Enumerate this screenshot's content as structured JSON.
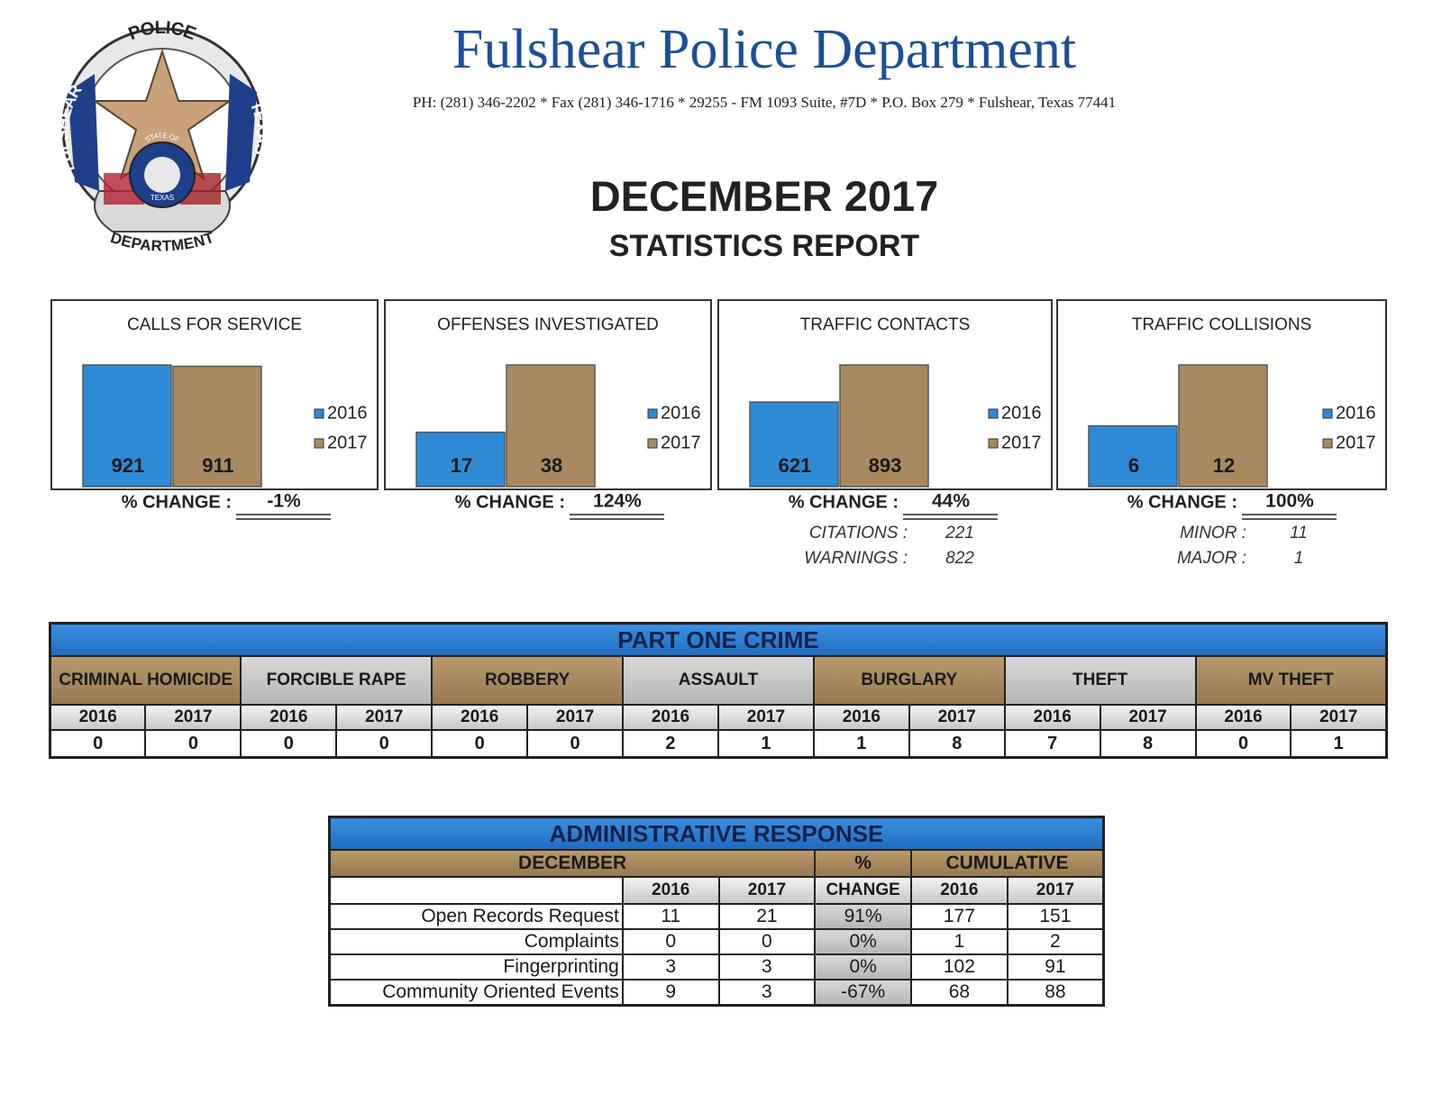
{
  "header": {
    "department": "Fulshear Police Department",
    "contact": "PH: (281) 346-2202 * Fax (281) 346-1716 * 29255 - FM 1093 Suite, #7D * P.O. Box 279 * Fulshear, Texas 77441",
    "title": "DECEMBER 2017",
    "subtitle": "STATISTICS REPORT"
  },
  "logo": {
    "top": "POLICE",
    "left": "FULSHEAR",
    "right": "TEXAS",
    "bottom": "DEPARTMENT",
    "seal_top": "STATE OF",
    "seal_bottom": "TEXAS"
  },
  "chart_data": [
    {
      "type": "bar",
      "title": "CALLS FOR SERVICE",
      "categories": [
        null
      ],
      "series": [
        {
          "name": "2016",
          "color": "#2f8ad6",
          "values": [
            921
          ]
        },
        {
          "name": "2017",
          "color": "#a98a60",
          "values": [
            911
          ]
        }
      ],
      "change_label": "% CHANGE :",
      "change": "-1%"
    },
    {
      "type": "bar",
      "title": "OFFENSES INVESTIGATED",
      "categories": [
        null
      ],
      "series": [
        {
          "name": "2016",
          "color": "#2f8ad6",
          "values": [
            17
          ]
        },
        {
          "name": "2017",
          "color": "#a98a60",
          "values": [
            38
          ]
        }
      ],
      "change_label": "% CHANGE :",
      "change": "124%"
    },
    {
      "type": "bar",
      "title": "TRAFFIC CONTACTS",
      "categories": [
        null
      ],
      "series": [
        {
          "name": "2016",
          "color": "#2f8ad6",
          "values": [
            621
          ]
        },
        {
          "name": "2017",
          "color": "#a98a60",
          "values": [
            893
          ]
        }
      ],
      "change_label": "% CHANGE :",
      "change": "44%",
      "details": [
        {
          "label": "CITATIONS :",
          "value": 221
        },
        {
          "label": "WARNINGS :",
          "value": 822
        }
      ]
    },
    {
      "type": "bar",
      "title": "TRAFFIC COLLISIONS",
      "categories": [
        null
      ],
      "series": [
        {
          "name": "2016",
          "color": "#2f8ad6",
          "values": [
            6
          ]
        },
        {
          "name": "2017",
          "color": "#a98a60",
          "values": [
            12
          ]
        }
      ],
      "change_label": "% CHANGE :",
      "change": "100%",
      "details": [
        {
          "label": "MINOR :",
          "value": 11
        },
        {
          "label": "MAJOR :",
          "value": 1
        }
      ]
    }
  ],
  "part_one_crime": {
    "title": "PART ONE CRIME",
    "years": [
      "2016",
      "2017"
    ],
    "columns": [
      {
        "name": "CRIMINAL HOMICIDE",
        "values": [
          0,
          0
        ]
      },
      {
        "name": "FORCIBLE RAPE",
        "values": [
          0,
          0
        ]
      },
      {
        "name": "ROBBERY",
        "values": [
          0,
          0
        ]
      },
      {
        "name": "ASSAULT",
        "values": [
          2,
          1
        ]
      },
      {
        "name": "BURGLARY",
        "values": [
          1,
          8
        ]
      },
      {
        "name": "THEFT",
        "values": [
          7,
          8
        ]
      },
      {
        "name": "MV THEFT",
        "values": [
          0,
          1
        ]
      }
    ]
  },
  "admin_response": {
    "title": "ADMINISTRATIVE RESPONSE",
    "groups": [
      "DECEMBER",
      "%",
      "CUMULATIVE"
    ],
    "subheaders": [
      "2016",
      "2017",
      "CHANGE",
      "2016",
      "2017"
    ],
    "rows": [
      {
        "label": "Open Records Request",
        "values": [
          11,
          21,
          "91%",
          177,
          151
        ]
      },
      {
        "label": "Complaints",
        "values": [
          0,
          0,
          "0%",
          1,
          2
        ]
      },
      {
        "label": "Fingerprinting",
        "values": [
          3,
          3,
          "0%",
          102,
          91
        ]
      },
      {
        "label": "Community Oriented Events",
        "values": [
          9,
          3,
          "-67%",
          68,
          88
        ]
      }
    ]
  }
}
